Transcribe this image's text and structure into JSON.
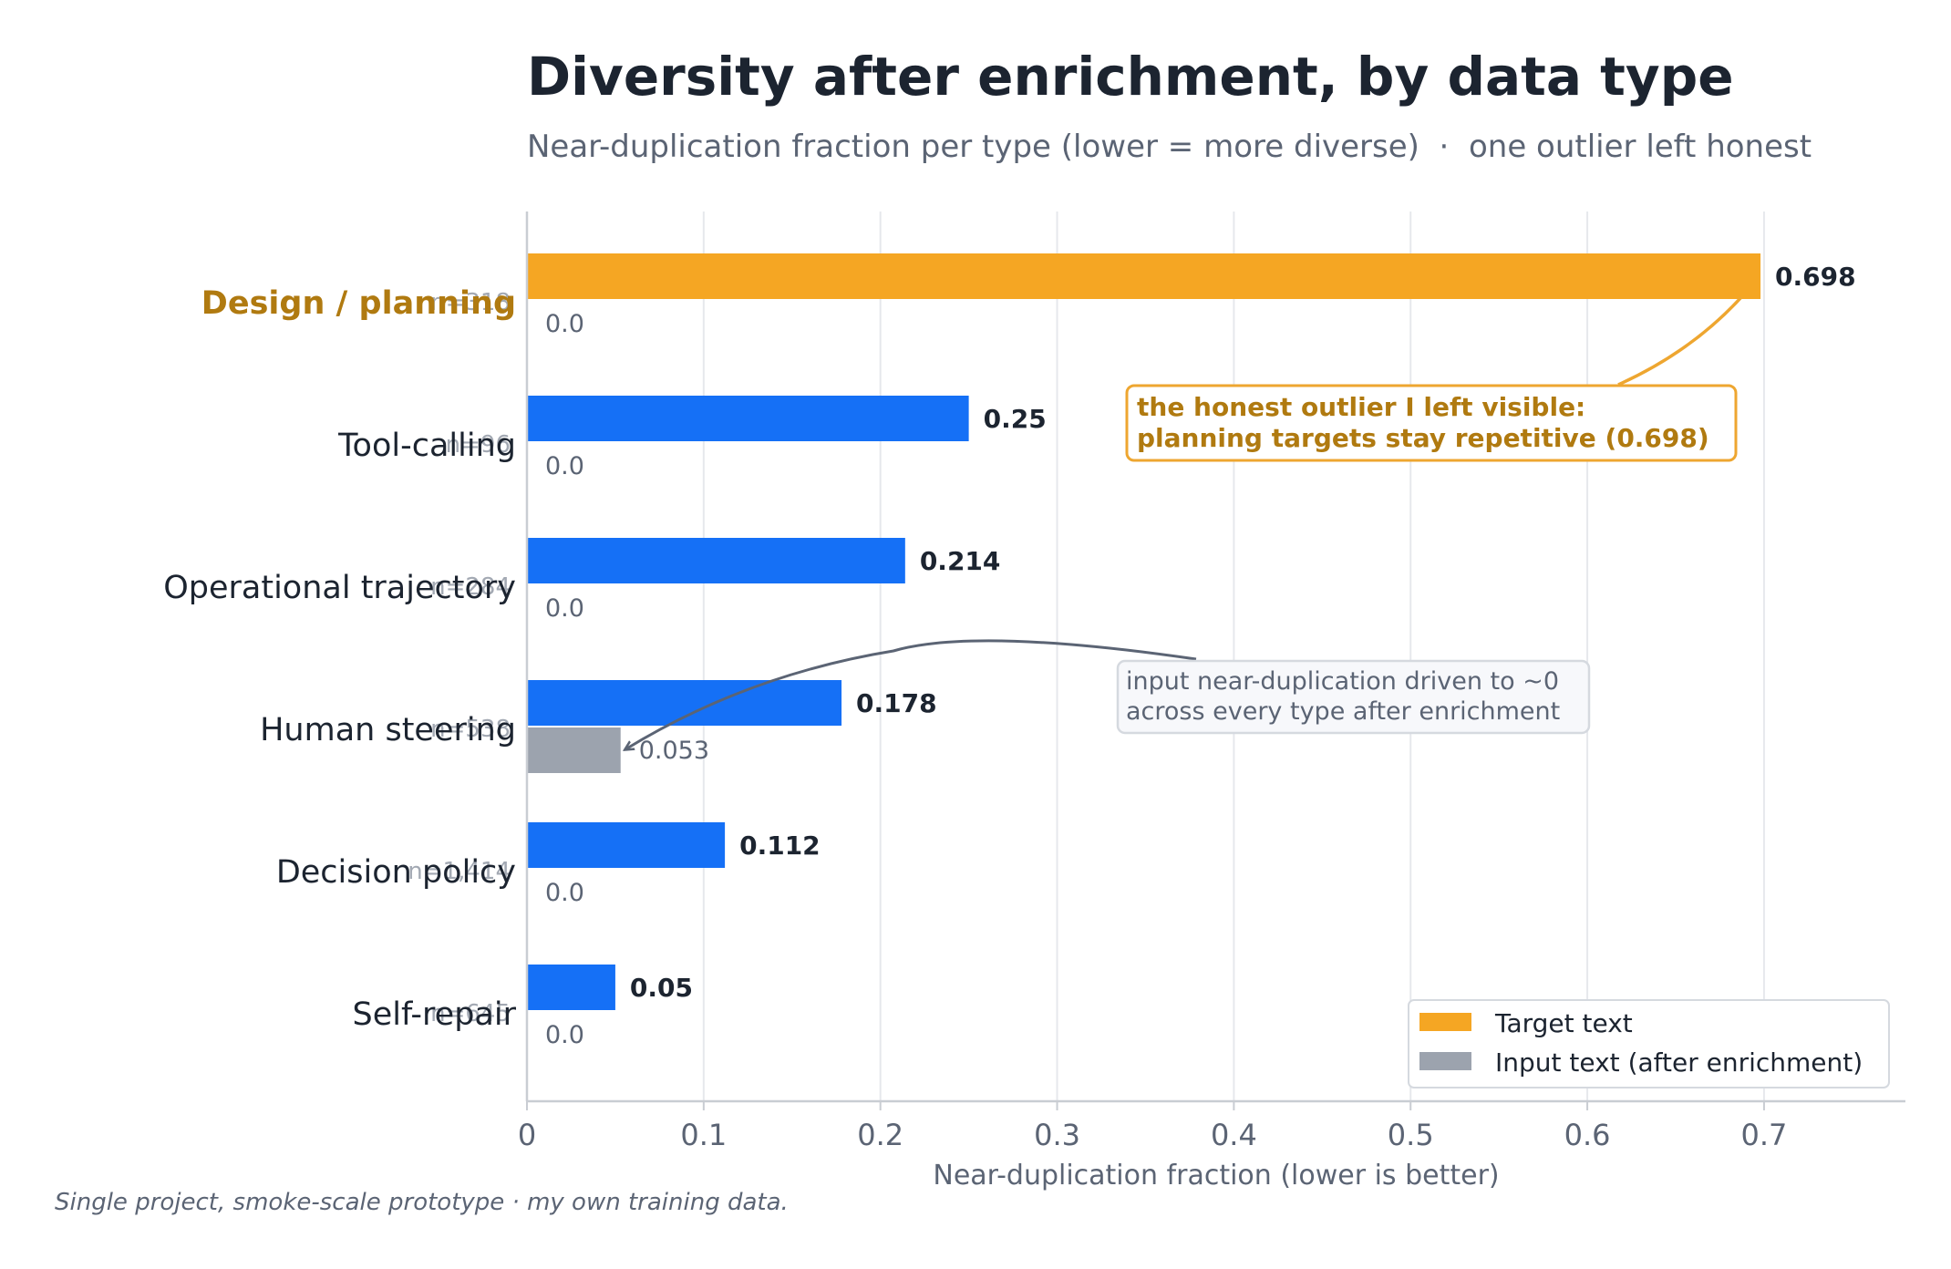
{
  "chart_data": {
    "type": "bar",
    "orientation": "horizontal",
    "title": "Diversity after enrichment, by data type",
    "subtitle": "Near-duplication fraction per type (lower = more diverse)  ·  one outlier left honest",
    "xlabel": "Near-duplication fraction  (lower is better)",
    "ylabel": "",
    "xlim": [
      0,
      0.78
    ],
    "xticks": [
      "0",
      "0.1",
      "0.2",
      "0.3",
      "0.4",
      "0.5",
      "0.6",
      "0.7"
    ],
    "grid": "vertical",
    "legend_position": "bottom-right",
    "categories": [
      {
        "label": "Design / planning",
        "n_label": "n=318",
        "highlight": true
      },
      {
        "label": "Tool-calling",
        "n_label": "n=96",
        "highlight": false
      },
      {
        "label": "Operational trajectory",
        "n_label": "n=284",
        "highlight": false
      },
      {
        "label": "Human steering",
        "n_label": "n=538",
        "highlight": false
      },
      {
        "label": "Decision policy",
        "n_label": "n=1,414",
        "highlight": false
      },
      {
        "label": "Self-repair",
        "n_label": "n=645",
        "highlight": false
      }
    ],
    "series": [
      {
        "name": "Target text",
        "values": [
          0.698,
          0.25,
          0.214,
          0.178,
          0.112,
          0.05
        ],
        "value_labels": [
          "0.698",
          "0.25",
          "0.214",
          "0.178",
          "0.112",
          "0.05"
        ]
      },
      {
        "name": "Input text (after enrichment)",
        "values": [
          0.0,
          0.0,
          0.0,
          0.053,
          0.0,
          0.0
        ],
        "value_labels": [
          "0.0",
          "0.0",
          "0.0",
          "0.053",
          "0.0",
          "0.0"
        ]
      }
    ],
    "annotations": [
      {
        "lines": [
          "the honest outlier I left visible:",
          "planning targets stay repetitive (0.698)"
        ],
        "points_to": "Design / planning target bar"
      },
      {
        "lines": [
          "input near-duplication driven to ~0",
          "across every type after enrichment"
        ],
        "points_to": "Human steering input bar"
      }
    ],
    "colors": {
      "target": "#f5a623",
      "target_other": "#1570f6",
      "input": "#9ca3ae",
      "highlight_text": "#b07a10",
      "title": "#1c2430",
      "muted": "#5b6474",
      "grid": "#e6e8ec",
      "axis": "#c9cdd3"
    }
  },
  "footnote": "Single project, smoke-scale prototype · my own training data."
}
